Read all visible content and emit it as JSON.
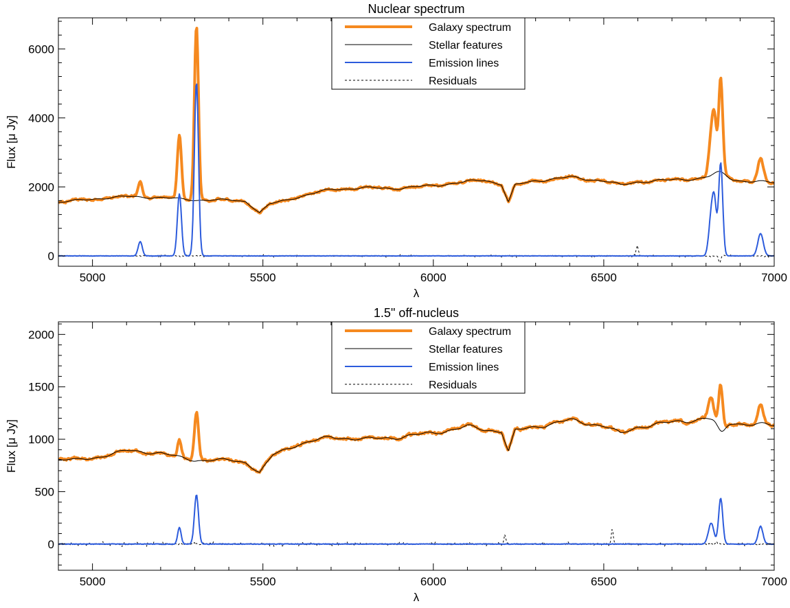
{
  "colors": {
    "galaxy": "#f5891f",
    "stellar": "#000000",
    "emission": "#2c5bdc",
    "residuals": "#000000"
  },
  "chart_data": [
    {
      "type": "line",
      "title": "Nuclear spectrum",
      "xlabel": "λ",
      "ylabel": "Flux [μ Jy]",
      "xlim": [
        4900,
        7000
      ],
      "ylim": [
        -300,
        6900
      ],
      "x_ticks": [
        5000,
        5500,
        6000,
        6500,
        7000
      ],
      "x_tick_labels": [
        "5000",
        "5500",
        "6000",
        "6500",
        "7000"
      ],
      "y_ticks": [
        0,
        2000,
        4000,
        6000
      ],
      "y_tick_labels": [
        "0",
        "2000",
        "4000",
        "6000"
      ],
      "legend_position": "top-center",
      "legend": [
        "Galaxy spectrum",
        "Stellar features",
        "Emission lines",
        "Residuals"
      ],
      "continuum": {
        "x": [
          4900,
          5000,
          5100,
          5200,
          5300,
          5400,
          5450,
          5490,
          5520,
          5600,
          5700,
          5800,
          5900,
          6000,
          6100,
          6150,
          6200,
          6220,
          6240,
          6300,
          6400,
          6500,
          6550,
          6600,
          6700,
          6800,
          6900,
          7000
        ],
        "values": [
          1550,
          1650,
          1720,
          1690,
          1620,
          1620,
          1580,
          1250,
          1500,
          1700,
          1930,
          1970,
          1960,
          2040,
          2150,
          2200,
          2080,
          1550,
          2050,
          2180,
          2280,
          2180,
          2050,
          2150,
          2200,
          2260,
          2180,
          2120
        ]
      },
      "emission_lines": [
        {
          "center": 5140,
          "amplitude": 420,
          "width": 6
        },
        {
          "center": 5255,
          "amplitude": 1800,
          "width": 6
        },
        {
          "center": 5305,
          "amplitude": 5050,
          "width": 6
        },
        {
          "center": 6815,
          "amplitude": 1100,
          "width": 7
        },
        {
          "center": 6825,
          "amplitude": 1350,
          "width": 6
        },
        {
          "center": 6843,
          "amplitude": 2700,
          "width": 6
        },
        {
          "center": 6960,
          "amplitude": 650,
          "width": 8
        }
      ],
      "stellar_emission_offset": [
        {
          "center": 6840,
          "amplitude": 180,
          "width": 20
        }
      ],
      "series": [
        {
          "name": "Galaxy spectrum",
          "style": "thick",
          "color_key": "galaxy"
        },
        {
          "name": "Stellar features",
          "style": "thin",
          "color_key": "stellar"
        },
        {
          "name": "Emission lines",
          "style": "medium",
          "color_key": "emission"
        },
        {
          "name": "Residuals",
          "style": "dashed",
          "color_key": "residuals"
        }
      ],
      "noise": {
        "galaxy": 55,
        "residual": 40,
        "residual_spikes": [
          {
            "x": 6598,
            "value": 320
          },
          {
            "x": 6840,
            "value": -200
          }
        ]
      }
    },
    {
      "type": "line",
      "title": "1.5\" off-nucleus",
      "xlabel": "λ",
      "ylabel": "Flux [μ Jy]",
      "xlim": [
        4900,
        7000
      ],
      "ylim": [
        -250,
        2120
      ],
      "x_ticks": [
        5000,
        5500,
        6000,
        6500,
        7000
      ],
      "x_tick_labels": [
        "5000",
        "5500",
        "6000",
        "6500",
        "7000"
      ],
      "y_ticks": [
        0,
        500,
        1000,
        1500,
        2000
      ],
      "y_tick_labels": [
        "0",
        "500",
        "1000",
        "1500",
        "2000"
      ],
      "legend_position": "top-center",
      "legend": [
        "Galaxy spectrum",
        "Stellar features",
        "Emission lines",
        "Residuals"
      ],
      "continuum": {
        "x": [
          4900,
          4950,
          5000,
          5100,
          5200,
          5250,
          5300,
          5400,
          5450,
          5490,
          5530,
          5600,
          5700,
          5800,
          5900,
          6000,
          6100,
          6150,
          6200,
          6220,
          6240,
          6300,
          6400,
          6500,
          6550,
          6600,
          6700,
          6800,
          6900,
          7000
        ],
        "values": [
          810,
          800,
          820,
          890,
          870,
          830,
          800,
          800,
          780,
          680,
          850,
          950,
          1020,
          1000,
          1020,
          1060,
          1120,
          1090,
          1080,
          880,
          1080,
          1120,
          1180,
          1130,
          1050,
          1120,
          1160,
          1200,
          1150,
          1130
        ]
      },
      "emission_lines": [
        {
          "center": 5255,
          "amplitude": 160,
          "width": 5
        },
        {
          "center": 5305,
          "amplitude": 470,
          "width": 6
        },
        {
          "center": 6815,
          "amplitude": 200,
          "width": 8
        },
        {
          "center": 6843,
          "amplitude": 440,
          "width": 6
        },
        {
          "center": 6960,
          "amplitude": 170,
          "width": 7
        }
      ],
      "stellar_emission_offset": [
        {
          "center": 6845,
          "amplitude": -120,
          "width": 12
        }
      ],
      "series": [
        {
          "name": "Galaxy spectrum",
          "style": "thick",
          "color_key": "galaxy"
        },
        {
          "name": "Stellar features",
          "style": "thin",
          "color_key": "stellar"
        },
        {
          "name": "Emission lines",
          "style": "medium",
          "color_key": "emission"
        },
        {
          "name": "Residuals",
          "style": "dashed",
          "color_key": "residuals"
        }
      ],
      "noise": {
        "galaxy": 22,
        "residual": 22,
        "residual_spikes": [
          {
            "x": 6525,
            "value": 140
          },
          {
            "x": 6210,
            "value": 80
          }
        ]
      }
    }
  ]
}
